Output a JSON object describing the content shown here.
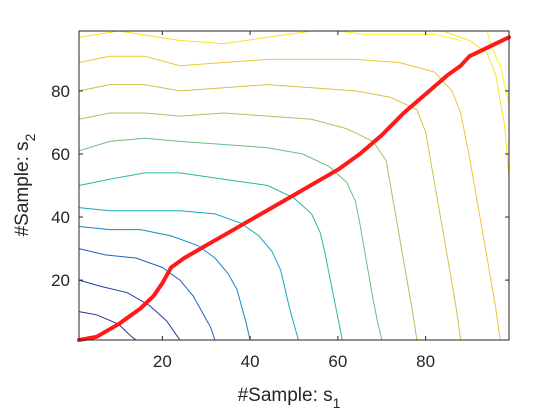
{
  "chart_data": {
    "type": "line",
    "xlabel": "#Sample: s",
    "xlabel_subscript": "1",
    "ylabel": "#Sample: s",
    "ylabel_subscript": "2",
    "xlim": [
      1,
      99
    ],
    "ylim": [
      1,
      99
    ],
    "xticks": [
      20,
      40,
      60,
      80
    ],
    "yticks": [
      20,
      40,
      60,
      80
    ],
    "grid": false,
    "box": true,
    "background": "#ffffff",
    "series": [
      {
        "kind": "path",
        "color": "#ff1a1a",
        "points": [
          [
            1,
            1
          ],
          [
            5,
            2
          ],
          [
            10,
            6
          ],
          [
            15,
            11
          ],
          [
            18,
            15
          ],
          [
            20,
            19
          ],
          [
            22,
            24
          ],
          [
            25,
            27
          ],
          [
            30,
            31
          ],
          [
            35,
            35
          ],
          [
            40,
            39
          ],
          [
            45,
            43
          ],
          [
            50,
            47
          ],
          [
            55,
            51
          ],
          [
            60,
            55
          ],
          [
            65,
            60
          ],
          [
            70,
            66
          ],
          [
            75,
            73
          ],
          [
            80,
            79
          ],
          [
            85,
            85
          ],
          [
            88,
            88
          ],
          [
            90,
            91
          ],
          [
            93,
            93
          ],
          [
            96,
            95
          ],
          [
            99,
            97
          ]
        ]
      }
    ],
    "contours": [
      {
        "color": "#2a2a8c",
        "points": [
          [
            1,
            10
          ],
          [
            5,
            9
          ],
          [
            10,
            6
          ],
          [
            13,
            2
          ],
          [
            14,
            1
          ]
        ]
      },
      {
        "color": "#1f3fa8",
        "points": [
          [
            1,
            20
          ],
          [
            6,
            18
          ],
          [
            12,
            16
          ],
          [
            17,
            12
          ],
          [
            21,
            7
          ],
          [
            23,
            3
          ],
          [
            24,
            1
          ]
        ]
      },
      {
        "color": "#1f60c2",
        "points": [
          [
            1,
            30
          ],
          [
            7,
            28
          ],
          [
            14,
            27
          ],
          [
            20,
            24
          ],
          [
            24,
            20
          ],
          [
            27,
            15
          ],
          [
            29,
            10
          ],
          [
            31,
            5
          ],
          [
            32,
            1
          ]
        ]
      },
      {
        "color": "#1b86c9",
        "points": [
          [
            1,
            37
          ],
          [
            8,
            36
          ],
          [
            15,
            36
          ],
          [
            22,
            34
          ],
          [
            28,
            31
          ],
          [
            32,
            27
          ],
          [
            35,
            22
          ],
          [
            37,
            17
          ],
          [
            38,
            12
          ],
          [
            39,
            7
          ],
          [
            40,
            1
          ]
        ]
      },
      {
        "color": "#19a7c0",
        "points": [
          [
            1,
            43
          ],
          [
            8,
            42
          ],
          [
            16,
            42
          ],
          [
            24,
            42
          ],
          [
            32,
            41
          ],
          [
            38,
            38
          ],
          [
            42,
            34
          ],
          [
            45,
            29
          ],
          [
            47,
            23
          ],
          [
            48,
            17
          ],
          [
            49,
            11
          ],
          [
            50,
            6
          ],
          [
            51,
            1
          ]
        ]
      },
      {
        "color": "#2bb6a4",
        "points": [
          [
            1,
            50
          ],
          [
            8,
            52
          ],
          [
            16,
            54
          ],
          [
            24,
            54
          ],
          [
            34,
            52
          ],
          [
            44,
            50
          ],
          [
            50,
            46
          ],
          [
            54,
            41
          ],
          [
            56,
            35
          ],
          [
            57,
            29
          ],
          [
            58,
            22
          ],
          [
            59,
            15
          ],
          [
            60,
            8
          ],
          [
            61,
            1
          ]
        ]
      },
      {
        "color": "#6cbd84",
        "points": [
          [
            1,
            61
          ],
          [
            8,
            64
          ],
          [
            16,
            65
          ],
          [
            24,
            64
          ],
          [
            34,
            63
          ],
          [
            44,
            62
          ],
          [
            52,
            60
          ],
          [
            58,
            56
          ],
          [
            62,
            51
          ],
          [
            64,
            45
          ],
          [
            65,
            38
          ],
          [
            66,
            30
          ],
          [
            67,
            22
          ],
          [
            68,
            14
          ],
          [
            69,
            7
          ],
          [
            70,
            1
          ]
        ]
      },
      {
        "color": "#a9c45f",
        "points": [
          [
            1,
            71
          ],
          [
            8,
            73
          ],
          [
            16,
            73
          ],
          [
            24,
            72
          ],
          [
            34,
            73
          ],
          [
            44,
            72
          ],
          [
            54,
            71
          ],
          [
            62,
            68
          ],
          [
            68,
            64
          ],
          [
            71,
            58
          ],
          [
            72,
            50
          ],
          [
            73,
            42
          ],
          [
            74,
            34
          ],
          [
            75,
            26
          ],
          [
            76,
            18
          ],
          [
            77,
            10
          ],
          [
            78,
            1
          ]
        ]
      },
      {
        "color": "#d4c046",
        "points": [
          [
            1,
            80
          ],
          [
            8,
            82
          ],
          [
            16,
            82
          ],
          [
            24,
            80
          ],
          [
            34,
            81
          ],
          [
            44,
            82
          ],
          [
            54,
            81
          ],
          [
            64,
            80
          ],
          [
            72,
            78
          ],
          [
            78,
            74
          ],
          [
            80,
            67
          ],
          [
            81,
            59
          ],
          [
            82,
            51
          ],
          [
            83,
            43
          ],
          [
            84,
            35
          ],
          [
            85,
            27
          ],
          [
            86,
            19
          ],
          [
            87,
            11
          ],
          [
            88,
            1
          ]
        ]
      },
      {
        "color": "#eec63a",
        "points": [
          [
            1,
            89
          ],
          [
            8,
            91
          ],
          [
            16,
            91
          ],
          [
            24,
            88
          ],
          [
            34,
            89
          ],
          [
            44,
            90
          ],
          [
            54,
            90
          ],
          [
            64,
            90
          ],
          [
            74,
            89
          ],
          [
            82,
            86
          ],
          [
            86,
            80
          ],
          [
            88,
            73
          ],
          [
            89,
            66
          ],
          [
            90,
            59
          ],
          [
            91,
            51
          ],
          [
            92,
            43
          ],
          [
            93,
            35
          ],
          [
            94,
            27
          ],
          [
            95,
            19
          ],
          [
            96,
            11
          ],
          [
            97,
            1
          ]
        ]
      },
      {
        "color": "#f9e02a",
        "points": [
          [
            1,
            97
          ],
          [
            10,
            99
          ],
          [
            24,
            96
          ],
          [
            34,
            95
          ],
          [
            44,
            97
          ],
          [
            54,
            99
          ],
          [
            64,
            99
          ],
          [
            74,
            99
          ],
          [
            84,
            99
          ],
          [
            90,
            96
          ],
          [
            94,
            92
          ],
          [
            96,
            85
          ],
          [
            97,
            77
          ],
          [
            98,
            69
          ],
          [
            98.5,
            61
          ],
          [
            99,
            53
          ]
        ]
      },
      {
        "color": "#f9f51c",
        "points": [
          [
            60,
            99
          ],
          [
            66,
            98
          ],
          [
            74,
            98
          ],
          [
            82,
            98
          ],
          [
            88,
            96
          ]
        ]
      },
      {
        "color": "#f9f51c",
        "points": [
          [
            94,
            99
          ],
          [
            95,
            94
          ],
          [
            97,
            88
          ],
          [
            98,
            82
          ],
          [
            99,
            76
          ]
        ]
      }
    ]
  }
}
